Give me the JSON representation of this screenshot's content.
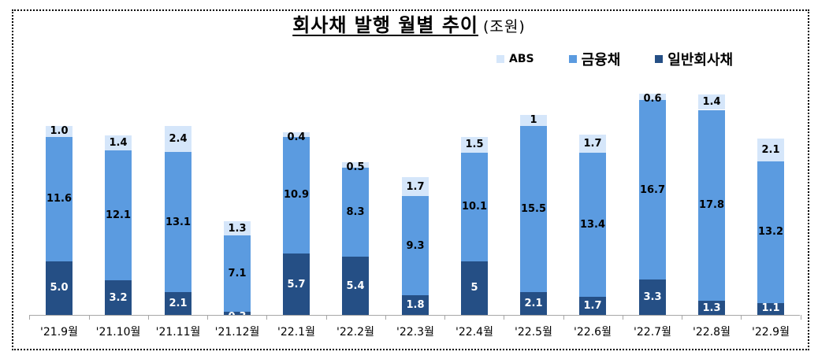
{
  "title": "회사채 발행 월별 추이",
  "unit": "(조원)",
  "legend": [
    {
      "label": "ABS",
      "color": "#d5e6fa"
    },
    {
      "label": "금융채",
      "color": "#5b9be0"
    },
    {
      "label": "일반회사채",
      "color": "#254f85"
    }
  ],
  "chart_data": {
    "type": "bar",
    "stacked": true,
    "title": "회사채 발행 월별 추이 (조원)",
    "xlabel": "",
    "ylabel": "조원",
    "categories": [
      "'21.9월",
      "'21.10월",
      "'21.11월",
      "'21.12월",
      "'22.1월",
      "'22.2월",
      "'22.3월",
      "'22.4월",
      "'22.5월",
      "'22.6월",
      "'22.7월",
      "'22.8월",
      "'22.9월"
    ],
    "series": [
      {
        "name": "일반회사채",
        "color": "#254f85",
        "values": [
          5.0,
          3.2,
          2.1,
          0.3,
          5.7,
          5.4,
          1.8,
          5,
          2.1,
          1.7,
          3.3,
          1.3,
          1.1
        ],
        "labels": [
          "5.0",
          "3.2",
          "2.1",
          "0.3",
          "5.7",
          "5.4",
          "1.8",
          "5",
          "2.1",
          "1.7",
          "3.3",
          "1.3",
          "1.1"
        ]
      },
      {
        "name": "금융채",
        "color": "#5b9be0",
        "values": [
          11.6,
          12.1,
          13.1,
          7.1,
          10.9,
          8.3,
          9.3,
          10.1,
          15.5,
          13.4,
          16.7,
          17.8,
          13.2
        ],
        "labels": [
          "11.6",
          "12.1",
          "13.1",
          "7.1",
          "10.9",
          "8.3",
          "9.3",
          "10.1",
          "15.5",
          "13.4",
          "16.7",
          "17.8",
          "13.2"
        ]
      },
      {
        "name": "ABS",
        "color": "#d5e6fa",
        "values": [
          1.0,
          1.4,
          2.4,
          1.3,
          0.4,
          0.5,
          1.7,
          1.5,
          1,
          1.7,
          0.6,
          1.4,
          2.1
        ],
        "labels": [
          "1.0",
          "1.4",
          "2.4",
          "1.3",
          "0.4",
          "0.5",
          "1.7",
          "1.5",
          "1",
          "1.7",
          "0.6",
          "1.4",
          "2.1"
        ]
      }
    ],
    "legend_position": "top-right",
    "grid": false,
    "y_axis_visible": false,
    "ylim": [
      0,
      21
    ]
  }
}
